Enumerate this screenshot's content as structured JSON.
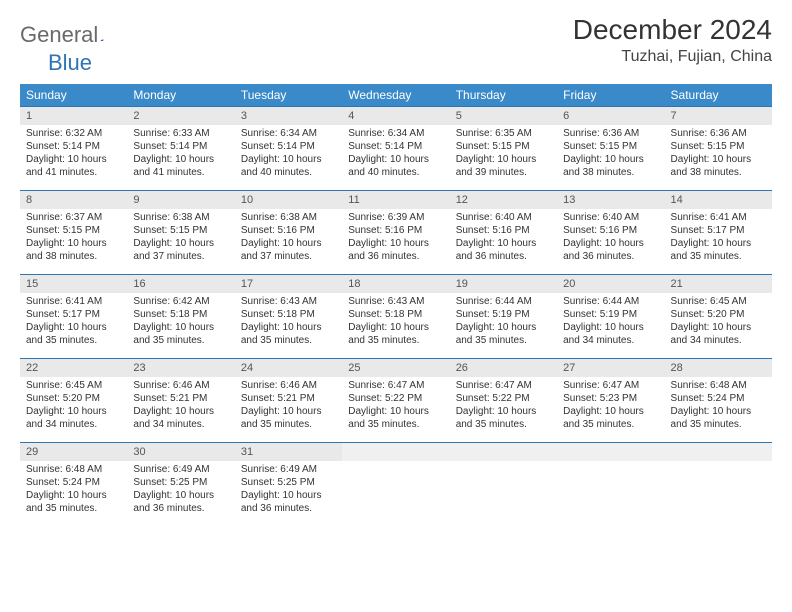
{
  "brand": {
    "part1": "General",
    "part2": "Blue"
  },
  "title": "December 2024",
  "location": "Tuzhai, Fujian, China",
  "colors": {
    "header_bg": "#3a8ac9",
    "header_text": "#ffffff",
    "row_border": "#2f74b5",
    "daynum_bg": "#e9e9e9",
    "logo_gray": "#6a6a6a",
    "logo_blue": "#2f74b5",
    "page_bg": "#ffffff"
  },
  "typography": {
    "title_fontsize": 28,
    "subtitle_fontsize": 16,
    "weekday_fontsize": 12,
    "cell_fontsize": 10
  },
  "weekdays": [
    "Sunday",
    "Monday",
    "Tuesday",
    "Wednesday",
    "Thursday",
    "Friday",
    "Saturday"
  ],
  "weeks": [
    [
      {
        "day": "1",
        "sunrise": "Sunrise: 6:32 AM",
        "sunset": "Sunset: 5:14 PM",
        "daylight": "Daylight: 10 hours and 41 minutes."
      },
      {
        "day": "2",
        "sunrise": "Sunrise: 6:33 AM",
        "sunset": "Sunset: 5:14 PM",
        "daylight": "Daylight: 10 hours and 41 minutes."
      },
      {
        "day": "3",
        "sunrise": "Sunrise: 6:34 AM",
        "sunset": "Sunset: 5:14 PM",
        "daylight": "Daylight: 10 hours and 40 minutes."
      },
      {
        "day": "4",
        "sunrise": "Sunrise: 6:34 AM",
        "sunset": "Sunset: 5:14 PM",
        "daylight": "Daylight: 10 hours and 40 minutes."
      },
      {
        "day": "5",
        "sunrise": "Sunrise: 6:35 AM",
        "sunset": "Sunset: 5:15 PM",
        "daylight": "Daylight: 10 hours and 39 minutes."
      },
      {
        "day": "6",
        "sunrise": "Sunrise: 6:36 AM",
        "sunset": "Sunset: 5:15 PM",
        "daylight": "Daylight: 10 hours and 38 minutes."
      },
      {
        "day": "7",
        "sunrise": "Sunrise: 6:36 AM",
        "sunset": "Sunset: 5:15 PM",
        "daylight": "Daylight: 10 hours and 38 minutes."
      }
    ],
    [
      {
        "day": "8",
        "sunrise": "Sunrise: 6:37 AM",
        "sunset": "Sunset: 5:15 PM",
        "daylight": "Daylight: 10 hours and 38 minutes."
      },
      {
        "day": "9",
        "sunrise": "Sunrise: 6:38 AM",
        "sunset": "Sunset: 5:15 PM",
        "daylight": "Daylight: 10 hours and 37 minutes."
      },
      {
        "day": "10",
        "sunrise": "Sunrise: 6:38 AM",
        "sunset": "Sunset: 5:16 PM",
        "daylight": "Daylight: 10 hours and 37 minutes."
      },
      {
        "day": "11",
        "sunrise": "Sunrise: 6:39 AM",
        "sunset": "Sunset: 5:16 PM",
        "daylight": "Daylight: 10 hours and 36 minutes."
      },
      {
        "day": "12",
        "sunrise": "Sunrise: 6:40 AM",
        "sunset": "Sunset: 5:16 PM",
        "daylight": "Daylight: 10 hours and 36 minutes."
      },
      {
        "day": "13",
        "sunrise": "Sunrise: 6:40 AM",
        "sunset": "Sunset: 5:16 PM",
        "daylight": "Daylight: 10 hours and 36 minutes."
      },
      {
        "day": "14",
        "sunrise": "Sunrise: 6:41 AM",
        "sunset": "Sunset: 5:17 PM",
        "daylight": "Daylight: 10 hours and 35 minutes."
      }
    ],
    [
      {
        "day": "15",
        "sunrise": "Sunrise: 6:41 AM",
        "sunset": "Sunset: 5:17 PM",
        "daylight": "Daylight: 10 hours and 35 minutes."
      },
      {
        "day": "16",
        "sunrise": "Sunrise: 6:42 AM",
        "sunset": "Sunset: 5:18 PM",
        "daylight": "Daylight: 10 hours and 35 minutes."
      },
      {
        "day": "17",
        "sunrise": "Sunrise: 6:43 AM",
        "sunset": "Sunset: 5:18 PM",
        "daylight": "Daylight: 10 hours and 35 minutes."
      },
      {
        "day": "18",
        "sunrise": "Sunrise: 6:43 AM",
        "sunset": "Sunset: 5:18 PM",
        "daylight": "Daylight: 10 hours and 35 minutes."
      },
      {
        "day": "19",
        "sunrise": "Sunrise: 6:44 AM",
        "sunset": "Sunset: 5:19 PM",
        "daylight": "Daylight: 10 hours and 35 minutes."
      },
      {
        "day": "20",
        "sunrise": "Sunrise: 6:44 AM",
        "sunset": "Sunset: 5:19 PM",
        "daylight": "Daylight: 10 hours and 34 minutes."
      },
      {
        "day": "21",
        "sunrise": "Sunrise: 6:45 AM",
        "sunset": "Sunset: 5:20 PM",
        "daylight": "Daylight: 10 hours and 34 minutes."
      }
    ],
    [
      {
        "day": "22",
        "sunrise": "Sunrise: 6:45 AM",
        "sunset": "Sunset: 5:20 PM",
        "daylight": "Daylight: 10 hours and 34 minutes."
      },
      {
        "day": "23",
        "sunrise": "Sunrise: 6:46 AM",
        "sunset": "Sunset: 5:21 PM",
        "daylight": "Daylight: 10 hours and 34 minutes."
      },
      {
        "day": "24",
        "sunrise": "Sunrise: 6:46 AM",
        "sunset": "Sunset: 5:21 PM",
        "daylight": "Daylight: 10 hours and 35 minutes."
      },
      {
        "day": "25",
        "sunrise": "Sunrise: 6:47 AM",
        "sunset": "Sunset: 5:22 PM",
        "daylight": "Daylight: 10 hours and 35 minutes."
      },
      {
        "day": "26",
        "sunrise": "Sunrise: 6:47 AM",
        "sunset": "Sunset: 5:22 PM",
        "daylight": "Daylight: 10 hours and 35 minutes."
      },
      {
        "day": "27",
        "sunrise": "Sunrise: 6:47 AM",
        "sunset": "Sunset: 5:23 PM",
        "daylight": "Daylight: 10 hours and 35 minutes."
      },
      {
        "day": "28",
        "sunrise": "Sunrise: 6:48 AM",
        "sunset": "Sunset: 5:24 PM",
        "daylight": "Daylight: 10 hours and 35 minutes."
      }
    ],
    [
      {
        "day": "29",
        "sunrise": "Sunrise: 6:48 AM",
        "sunset": "Sunset: 5:24 PM",
        "daylight": "Daylight: 10 hours and 35 minutes."
      },
      {
        "day": "30",
        "sunrise": "Sunrise: 6:49 AM",
        "sunset": "Sunset: 5:25 PM",
        "daylight": "Daylight: 10 hours and 36 minutes."
      },
      {
        "day": "31",
        "sunrise": "Sunrise: 6:49 AM",
        "sunset": "Sunset: 5:25 PM",
        "daylight": "Daylight: 10 hours and 36 minutes."
      },
      {
        "day": "",
        "sunrise": "",
        "sunset": "",
        "daylight": ""
      },
      {
        "day": "",
        "sunrise": "",
        "sunset": "",
        "daylight": ""
      },
      {
        "day": "",
        "sunrise": "",
        "sunset": "",
        "daylight": ""
      },
      {
        "day": "",
        "sunrise": "",
        "sunset": "",
        "daylight": ""
      }
    ]
  ]
}
